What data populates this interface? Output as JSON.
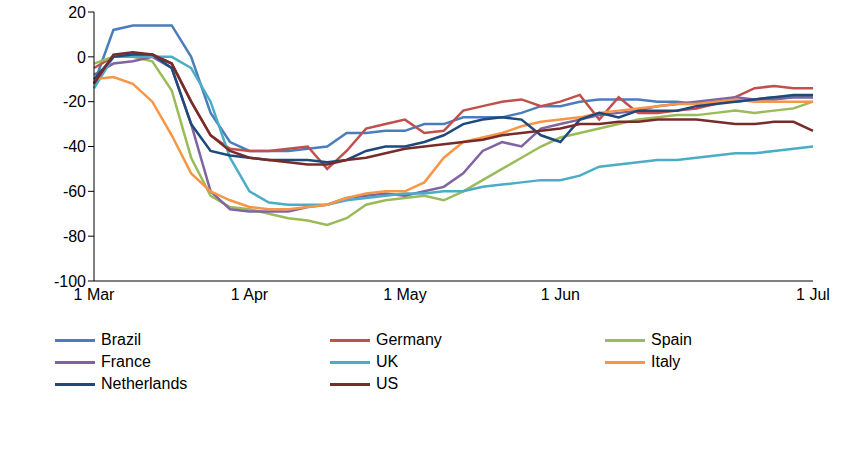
{
  "chart_data": {
    "type": "line",
    "categories": [
      "1 Mar",
      null,
      null,
      null,
      null,
      null,
      null,
      null,
      "1 Apr",
      null,
      null,
      null,
      null,
      null,
      null,
      null,
      "1 May",
      null,
      null,
      null,
      null,
      null,
      null,
      null,
      "1 Jun",
      null,
      null,
      null,
      null,
      null,
      null,
      null,
      null,
      null,
      null,
      null,
      null,
      "1 Jul"
    ],
    "series": [
      {
        "name": "Brazil",
        "color": "#4a7ebb",
        "values": [
          -12,
          12,
          14,
          14,
          14,
          0,
          -25,
          -38,
          -42,
          -42,
          -42,
          -41,
          -40,
          -34,
          -34,
          -33,
          -33,
          -30,
          -30,
          -27,
          -27,
          -27,
          -25,
          -22,
          -22,
          -20,
          -19,
          -19,
          -19,
          -20,
          -20,
          -21,
          -20,
          -20,
          -19,
          -18,
          -18,
          -18
        ]
      },
      {
        "name": "Germany",
        "color": "#c0504d",
        "values": [
          -5,
          0,
          1,
          1,
          -3,
          -20,
          -35,
          -41,
          -42,
          -42,
          -41,
          -40,
          -50,
          -42,
          -32,
          -30,
          -28,
          -34,
          -33,
          -24,
          -22,
          -20,
          -19,
          -22,
          -20,
          -17,
          -28,
          -18,
          -25,
          -25,
          -24,
          -23,
          -21,
          -18,
          -14,
          -13,
          -14,
          -14
        ]
      },
      {
        "name": "Spain",
        "color": "#9bbb59",
        "values": [
          -3,
          0,
          0,
          -2,
          -15,
          -45,
          -62,
          -67,
          -68,
          -70,
          -72,
          -73,
          -75,
          -72,
          -66,
          -64,
          -63,
          -62,
          -64,
          -60,
          -55,
          -50,
          -45,
          -40,
          -36,
          -34,
          -32,
          -30,
          -28,
          -27,
          -26,
          -26,
          -25,
          -24,
          -25,
          -24,
          -23,
          -20
        ]
      },
      {
        "name": "France",
        "color": "#8064a2",
        "values": [
          -8,
          -3,
          -2,
          0,
          -5,
          -30,
          -60,
          -68,
          -69,
          -69,
          -69,
          -67,
          -66,
          -63,
          -62,
          -61,
          -62,
          -60,
          -58,
          -52,
          -42,
          -38,
          -40,
          -32,
          -30,
          -28,
          -26,
          -25,
          -24,
          -22,
          -21,
          -20,
          -19,
          -18,
          -19,
          -19,
          -18,
          -18
        ]
      },
      {
        "name": "UK",
        "color": "#4bacc6",
        "values": [
          -14,
          0,
          0,
          0,
          0,
          -5,
          -20,
          -45,
          -60,
          -65,
          -66,
          -66,
          -66,
          -64,
          -63,
          -62,
          -61,
          -61,
          -60,
          -60,
          -58,
          -57,
          -56,
          -55,
          -55,
          -53,
          -49,
          -48,
          -47,
          -46,
          -46,
          -45,
          -44,
          -43,
          -43,
          -42,
          -41,
          -40
        ]
      },
      {
        "name": "Italy",
        "color": "#f79646",
        "values": [
          -10,
          -9,
          -12,
          -20,
          -35,
          -52,
          -60,
          -64,
          -67,
          -68,
          -68,
          -67,
          -66,
          -63,
          -61,
          -60,
          -60,
          -56,
          -45,
          -38,
          -36,
          -34,
          -31,
          -29,
          -28,
          -27,
          -25,
          -24,
          -23,
          -22,
          -21,
          -21,
          -20,
          -19,
          -20,
          -20,
          -20,
          -20
        ]
      },
      {
        "name": "Netherlands",
        "color": "#1f497d",
        "values": [
          -10,
          0,
          1,
          1,
          -5,
          -30,
          -42,
          -44,
          -45,
          -46,
          -46,
          -46,
          -47,
          -46,
          -42,
          -40,
          -40,
          -38,
          -35,
          -30,
          -28,
          -27,
          -28,
          -35,
          -38,
          -28,
          -25,
          -27,
          -24,
          -24,
          -24,
          -22,
          -21,
          -20,
          -19,
          -18,
          -17,
          -17
        ]
      },
      {
        "name": "US",
        "color": "#772c2a",
        "values": [
          -12,
          1,
          2,
          1,
          -3,
          -20,
          -35,
          -42,
          -45,
          -46,
          -47,
          -48,
          -48,
          -46,
          -45,
          -43,
          -41,
          -40,
          -39,
          -38,
          -37,
          -35,
          -34,
          -33,
          -32,
          -30,
          -30,
          -29,
          -29,
          -28,
          -28,
          -28,
          -29,
          -30,
          -30,
          -29,
          -29,
          -33
        ]
      }
    ],
    "ylim": [
      -100,
      20
    ],
    "yticks": [
      -100,
      -80,
      -60,
      -40,
      -20,
      0,
      20
    ],
    "grid": false,
    "legend": "bottom"
  }
}
